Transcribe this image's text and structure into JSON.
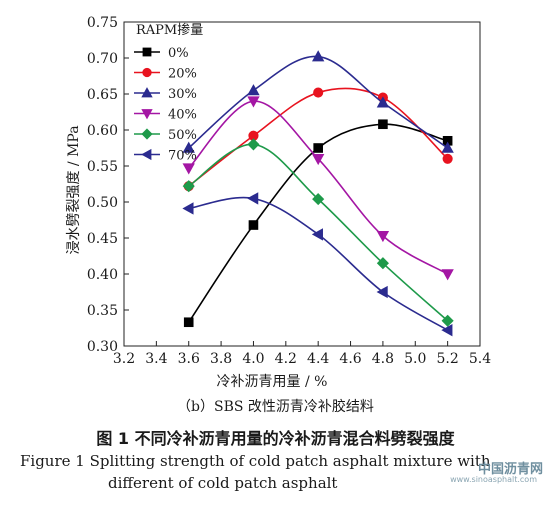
{
  "chart_data": {
    "type": "line",
    "xlabel": "冷补沥青用量 / %",
    "ylabel": "浸水劈裂强度 / MPa",
    "xlim": [
      3.2,
      5.4
    ],
    "ylim": [
      0.3,
      0.75
    ],
    "xticks": [
      "3.2",
      "3.4",
      "3.6",
      "3.8",
      "4.0",
      "4.2",
      "4.4",
      "4.6",
      "4.8",
      "5.0",
      "5.2",
      "5.4"
    ],
    "yticks": [
      "0.30",
      "0.35",
      "0.40",
      "0.45",
      "0.50",
      "0.55",
      "0.60",
      "0.65",
      "0.70",
      "0.75"
    ],
    "x": [
      3.6,
      4.0,
      4.4,
      4.8,
      5.2
    ],
    "legend_title": "RAPM掺量",
    "legend_position": "top-left",
    "series": [
      {
        "name": "0%",
        "color": "#000000",
        "marker": "square",
        "values": [
          0.333,
          0.468,
          0.575,
          0.608,
          0.585
        ]
      },
      {
        "name": "20%",
        "color": "#e8131f",
        "marker": "circle",
        "values": [
          0.522,
          0.592,
          0.652,
          0.645,
          0.56
        ]
      },
      {
        "name": "30%",
        "color": "#2b2b8f",
        "marker": "triangle-up",
        "values": [
          0.575,
          0.655,
          0.702,
          0.638,
          0.575
        ]
      },
      {
        "name": "40%",
        "color": "#a416a4",
        "marker": "triangle-down",
        "values": [
          0.547,
          0.64,
          0.56,
          0.453,
          0.4
        ]
      },
      {
        "name": "50%",
        "color": "#1e9a4a",
        "marker": "diamond",
        "values": [
          0.522,
          0.58,
          0.504,
          0.415,
          0.335
        ]
      },
      {
        "name": "70%",
        "color": "#2b2b8f",
        "marker": "triangle-left",
        "values": [
          0.491,
          0.505,
          0.455,
          0.375,
          0.322
        ]
      }
    ]
  },
  "captions": {
    "subcaption": "（b）SBS 改性沥青冷补胶结料",
    "figure_cn": "图 1    不同冷补沥青用量的冷补沥青混合料劈裂强度",
    "figure_en_line1": "Figure 1    Splitting strength of cold patch asphalt mixture with",
    "figure_en_line2": "different of cold patch asphalt",
    "watermark": "中国沥青网",
    "watermark_url": "www.sinoasphalt.com"
  }
}
